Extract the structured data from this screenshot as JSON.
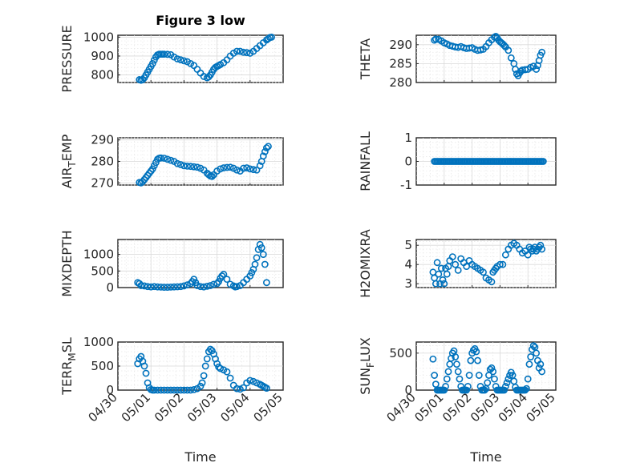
{
  "figure_title": "Figure 3 low",
  "chart_data": [
    {
      "type": "scatter",
      "id": "pressure",
      "ylabel": {
        "main": "PRESSURE",
        "sub": "",
        "tail": ""
      },
      "title": "Figure 3 low",
      "ylim": [
        760,
        1010
      ],
      "yticks": [
        800,
        900,
        1000
      ],
      "xticks": [],
      "xticklabels": [],
      "xlabel": "",
      "x": [
        0.65,
        0.7,
        0.75,
        0.8,
        0.85,
        0.9,
        0.95,
        1.0,
        1.05,
        1.1,
        1.15,
        1.2,
        1.25,
        1.3,
        1.35,
        1.4,
        1.5,
        1.6,
        1.7,
        1.8,
        1.9,
        2.0,
        2.1,
        2.2,
        2.3,
        2.4,
        2.5,
        2.6,
        2.7,
        2.75,
        2.8,
        2.85,
        2.9,
        2.95,
        3.0,
        3.05,
        3.1,
        3.2,
        3.3,
        3.4,
        3.5,
        3.6,
        3.7,
        3.8,
        3.9,
        4.0,
        4.1,
        4.2,
        4.3,
        4.4,
        4.5,
        4.55,
        4.6,
        4.65
      ],
      "y": [
        775,
        772,
        775,
        785,
        800,
        815,
        830,
        845,
        860,
        878,
        895,
        906,
        910,
        910,
        910,
        910,
        909,
        907,
        895,
        885,
        880,
        875,
        870,
        860,
        850,
        830,
        810,
        792,
        785,
        790,
        800,
        815,
        830,
        840,
        845,
        850,
        855,
        865,
        880,
        900,
        915,
        925,
        925,
        920,
        918,
        915,
        925,
        940,
        955,
        970,
        985,
        992,
        998,
        1000
      ]
    },
    {
      "type": "scatter",
      "id": "theta",
      "ylabel": {
        "main": "THETA",
        "sub": "",
        "tail": ""
      },
      "ylim": [
        280,
        292.5
      ],
      "yticks": [
        280,
        285,
        290
      ],
      "xticks": [],
      "xticklabels": [],
      "xlabel": "",
      "x": [
        0.65,
        0.7,
        0.8,
        0.9,
        1.0,
        1.1,
        1.2,
        1.3,
        1.4,
        1.5,
        1.6,
        1.7,
        1.8,
        1.9,
        2.0,
        2.1,
        2.2,
        2.3,
        2.4,
        2.5,
        2.6,
        2.7,
        2.8,
        2.85,
        2.9,
        2.95,
        3.0,
        3.05,
        3.1,
        3.15,
        3.2,
        3.3,
        3.4,
        3.5,
        3.55,
        3.6,
        3.65,
        3.7,
        3.75,
        3.8,
        3.9,
        4.0,
        4.1,
        4.2,
        4.3,
        4.35,
        4.4,
        4.45,
        4.5
      ],
      "y": [
        291.2,
        291.5,
        291.4,
        291.0,
        290.5,
        290.2,
        289.8,
        289.6,
        289.4,
        289.3,
        289.5,
        289.2,
        289.0,
        289.1,
        289.2,
        288.8,
        288.5,
        288.6,
        288.8,
        289.5,
        290.5,
        291.3,
        292.0,
        292.2,
        291.8,
        291.2,
        290.8,
        290.5,
        290.2,
        289.8,
        289.4,
        288.5,
        286.5,
        285.0,
        283.5,
        282.3,
        281.8,
        282.5,
        283.0,
        283.3,
        283.4,
        283.5,
        284.0,
        284.3,
        283.5,
        284.5,
        285.8,
        287.2,
        288.0
      ]
    },
    {
      "type": "scatter",
      "id": "air_temp",
      "ylabel": {
        "main": "AIR",
        "sub": "T",
        "tail": "EMP"
      },
      "ylim": [
        269,
        291
      ],
      "yticks": [
        270,
        280,
        290
      ],
      "xticks": [],
      "xticklabels": [],
      "xlabel": "",
      "x": [
        0.65,
        0.7,
        0.75,
        0.8,
        0.85,
        0.9,
        0.95,
        1.0,
        1.05,
        1.1,
        1.15,
        1.2,
        1.25,
        1.3,
        1.4,
        1.5,
        1.6,
        1.7,
        1.8,
        1.9,
        2.0,
        2.1,
        2.2,
        2.3,
        2.4,
        2.5,
        2.6,
        2.7,
        2.75,
        2.8,
        2.85,
        2.9,
        3.0,
        3.1,
        3.2,
        3.3,
        3.4,
        3.5,
        3.6,
        3.7,
        3.8,
        3.9,
        4.0,
        4.1,
        4.2,
        4.3,
        4.35,
        4.4,
        4.45,
        4.5,
        4.55
      ],
      "y": [
        270.2,
        270.0,
        270.6,
        271.5,
        272.5,
        273.5,
        274.5,
        275.5,
        276.5,
        278.0,
        279.5,
        281.0,
        281.5,
        281.6,
        281.5,
        281.0,
        280.5,
        280.0,
        279.0,
        278.5,
        278.0,
        277.8,
        277.7,
        277.5,
        277.3,
        276.8,
        276.0,
        274.5,
        273.8,
        273.2,
        273.0,
        273.8,
        275.5,
        276.5,
        277.0,
        277.2,
        277.3,
        276.8,
        276.0,
        275.5,
        276.8,
        277.0,
        276.5,
        276.2,
        276.0,
        278.0,
        280.0,
        282.5,
        284.5,
        286.3,
        287.0
      ]
    },
    {
      "type": "scatter",
      "id": "rainfall",
      "ylabel": {
        "main": "RAINFALL",
        "sub": "",
        "tail": ""
      },
      "ylim": [
        -1,
        1
      ],
      "yticks": [
        -1,
        0,
        1
      ],
      "xticks": [],
      "xticklabels": [],
      "xlabel": "",
      "x": [
        0.65,
        0.7,
        0.75,
        0.8,
        0.85,
        0.9,
        0.95,
        1.0,
        1.05,
        1.1,
        1.15,
        1.2,
        1.25,
        1.3,
        1.35,
        1.4,
        1.45,
        1.5,
        1.55,
        1.6,
        1.65,
        1.7,
        1.75,
        1.8,
        1.85,
        1.9,
        1.95,
        2.0,
        2.05,
        2.1,
        2.15,
        2.2,
        2.25,
        2.3,
        2.35,
        2.4,
        2.45,
        2.5,
        2.55,
        2.6,
        2.65,
        2.7,
        2.75,
        2.8,
        2.85,
        2.9,
        2.95,
        3.0,
        3.05,
        3.1,
        3.15,
        3.2,
        3.25,
        3.3,
        3.35,
        3.4,
        3.45,
        3.5,
        3.55,
        3.6,
        3.65,
        3.7,
        3.75,
        3.8,
        3.85,
        3.9,
        3.95,
        4.0,
        4.05,
        4.1,
        4.15,
        4.2,
        4.25,
        4.3,
        4.35,
        4.4,
        4.45,
        4.5,
        4.55
      ],
      "y": [
        0,
        0,
        0,
        0,
        0,
        0,
        0,
        0,
        0,
        0,
        0,
        0,
        0,
        0,
        0,
        0,
        0,
        0,
        0,
        0,
        0,
        0,
        0,
        0,
        0,
        0,
        0,
        0,
        0,
        0,
        0,
        0,
        0,
        0,
        0,
        0,
        0,
        0,
        0,
        0,
        0,
        0,
        0,
        0,
        0,
        0,
        0,
        0,
        0,
        0,
        0,
        0,
        0,
        0,
        0,
        0,
        0,
        0,
        0,
        0,
        0,
        0,
        0,
        0,
        0,
        0,
        0,
        0,
        0,
        0,
        0,
        0,
        0,
        0,
        0,
        0,
        0,
        0,
        0
      ]
    },
    {
      "type": "scatter",
      "id": "mixdepth",
      "ylabel": {
        "main": "MIXDEPTH",
        "sub": "",
        "tail": ""
      },
      "ylim": [
        0,
        1450
      ],
      "yticks": [
        0,
        500,
        1000
      ],
      "xticks": [],
      "xticklabels": [],
      "xlabel": "",
      "x": [
        0.6,
        0.65,
        0.7,
        0.8,
        0.9,
        1.0,
        1.1,
        1.2,
        1.3,
        1.4,
        1.5,
        1.6,
        1.7,
        1.8,
        1.9,
        2.0,
        2.1,
        2.2,
        2.25,
        2.3,
        2.35,
        2.4,
        2.5,
        2.6,
        2.7,
        2.8,
        2.9,
        3.0,
        3.05,
        3.1,
        3.15,
        3.2,
        3.3,
        3.4,
        3.5,
        3.55,
        3.6,
        3.7,
        3.8,
        3.9,
        4.0,
        4.05,
        4.1,
        4.15,
        4.2,
        4.25,
        4.3,
        4.35,
        4.4,
        4.45,
        4.5
      ],
      "y": [
        150,
        120,
        60,
        50,
        30,
        20,
        30,
        20,
        15,
        10,
        10,
        15,
        20,
        25,
        30,
        50,
        80,
        120,
        180,
        250,
        150,
        60,
        30,
        20,
        40,
        60,
        100,
        120,
        180,
        280,
        350,
        400,
        250,
        100,
        50,
        20,
        30,
        60,
        150,
        250,
        350,
        450,
        550,
        700,
        900,
        1150,
        1300,
        1200,
        1000,
        700,
        150
      ]
    },
    {
      "type": "scatter",
      "id": "h2omixra",
      "ylabel": {
        "main": "H2OMIXRA",
        "sub": "",
        "tail": ""
      },
      "ylim": [
        2.8,
        5.3
      ],
      "yticks": [
        3,
        4,
        5
      ],
      "xticks": [],
      "xticklabels": [],
      "xlabel": "",
      "x": [
        0.6,
        0.65,
        0.7,
        0.75,
        0.8,
        0.85,
        0.9,
        0.95,
        1.0,
        1.05,
        1.1,
        1.15,
        1.2,
        1.3,
        1.4,
        1.5,
        1.6,
        1.7,
        1.8,
        1.9,
        2.0,
        2.1,
        2.2,
        2.3,
        2.4,
        2.5,
        2.6,
        2.7,
        2.75,
        2.8,
        2.85,
        2.9,
        3.0,
        3.1,
        3.2,
        3.3,
        3.4,
        3.5,
        3.6,
        3.7,
        3.8,
        3.9,
        4.0,
        4.05,
        4.1,
        4.15,
        4.2,
        4.25,
        4.3,
        4.35,
        4.4,
        4.45,
        4.5
      ],
      "y": [
        3.6,
        3.3,
        3.0,
        4.1,
        3.5,
        3.0,
        3.8,
        3.2,
        3.0,
        3.8,
        3.5,
        3.9,
        4.2,
        4.4,
        4.0,
        3.7,
        4.3,
        4.1,
        3.9,
        4.2,
        4.0,
        3.9,
        3.8,
        3.7,
        3.6,
        3.3,
        3.2,
        3.1,
        3.6,
        3.7,
        3.8,
        3.9,
        4.0,
        4.0,
        4.5,
        4.8,
        5.0,
        5.1,
        5.0,
        4.8,
        4.6,
        4.7,
        4.5,
        4.9,
        4.8,
        4.7,
        4.8,
        4.9,
        4.7,
        4.8,
        4.9,
        5.0,
        4.8
      ]
    },
    {
      "type": "scatter",
      "id": "terr_msl",
      "ylabel": {
        "main": "TERR",
        "sub": "M",
        "tail": "SL"
      },
      "ylim": [
        0,
        1000
      ],
      "yticks": [
        0,
        500,
        1000
      ],
      "xticks": [
        0,
        1,
        2,
        3,
        4,
        5
      ],
      "xticklabels": [
        "04/30",
        "05/01",
        "05/02",
        "05/03",
        "05/04",
        "05/05"
      ],
      "xlabel": "Time",
      "x": [
        0.6,
        0.65,
        0.7,
        0.75,
        0.8,
        0.85,
        0.9,
        0.95,
        1.0,
        1.05,
        1.1,
        1.2,
        1.3,
        1.4,
        1.5,
        1.6,
        1.7,
        1.8,
        1.9,
        2.0,
        2.1,
        2.2,
        2.3,
        2.4,
        2.5,
        2.55,
        2.6,
        2.65,
        2.7,
        2.75,
        2.8,
        2.85,
        2.9,
        2.95,
        3.0,
        3.05,
        3.1,
        3.2,
        3.3,
        3.4,
        3.5,
        3.6,
        3.7,
        3.8,
        3.9,
        4.0,
        4.1,
        4.2,
        4.3,
        4.35,
        4.4,
        4.45,
        4.5
      ],
      "y": [
        550,
        650,
        700,
        600,
        500,
        350,
        150,
        50,
        10,
        0,
        0,
        0,
        0,
        0,
        0,
        0,
        0,
        0,
        0,
        0,
        0,
        0,
        10,
        30,
        80,
        150,
        300,
        500,
        650,
        800,
        850,
        820,
        750,
        650,
        550,
        480,
        450,
        420,
        380,
        250,
        100,
        30,
        20,
        50,
        150,
        200,
        180,
        150,
        120,
        100,
        80,
        60,
        40
      ]
    },
    {
      "type": "scatter",
      "id": "sun_flux",
      "ylabel": {
        "main": "SUN",
        "sub": "F",
        "tail": "LUX"
      },
      "ylim": [
        0,
        650
      ],
      "yticks": [
        0,
        500
      ],
      "xticks": [
        0,
        1,
        2,
        3,
        4,
        5
      ],
      "xticklabels": [
        "04/30",
        "05/01",
        "05/02",
        "05/03",
        "05/04",
        "05/05"
      ],
      "xlabel": "Time",
      "x": [
        0.6,
        0.65,
        0.7,
        0.75,
        0.8,
        0.85,
        0.9,
        0.95,
        1.0,
        1.05,
        1.1,
        1.15,
        1.2,
        1.25,
        1.3,
        1.35,
        1.4,
        1.45,
        1.5,
        1.55,
        1.6,
        1.65,
        1.7,
        1.75,
        1.8,
        1.85,
        1.9,
        1.95,
        2.0,
        2.05,
        2.1,
        2.15,
        2.2,
        2.25,
        2.3,
        2.35,
        2.4,
        2.45,
        2.5,
        2.55,
        2.6,
        2.65,
        2.7,
        2.75,
        2.8,
        2.85,
        2.9,
        2.95,
        3.0,
        3.05,
        3.1,
        3.15,
        3.2,
        3.25,
        3.3,
        3.35,
        3.4,
        3.45,
        3.5,
        3.55,
        3.6,
        3.65,
        3.7,
        3.75,
        3.8,
        3.85,
        3.9,
        3.95,
        4.0,
        4.05,
        4.1,
        4.15,
        4.2,
        4.25,
        4.3,
        4.35,
        4.4,
        4.45,
        4.5
      ],
      "y": [
        420,
        200,
        80,
        0,
        0,
        0,
        0,
        0,
        0,
        50,
        150,
        250,
        350,
        430,
        500,
        530,
        450,
        350,
        250,
        150,
        50,
        0,
        0,
        0,
        0,
        50,
        200,
        400,
        500,
        540,
        560,
        520,
        400,
        200,
        50,
        0,
        0,
        0,
        20,
        100,
        200,
        280,
        300,
        250,
        150,
        50,
        0,
        0,
        0,
        0,
        0,
        0,
        50,
        100,
        150,
        200,
        240,
        200,
        120,
        40,
        0,
        0,
        0,
        0,
        0,
        0,
        0,
        20,
        150,
        350,
        450,
        550,
        600,
        580,
        500,
        400,
        300,
        350,
        250
      ]
    }
  ]
}
